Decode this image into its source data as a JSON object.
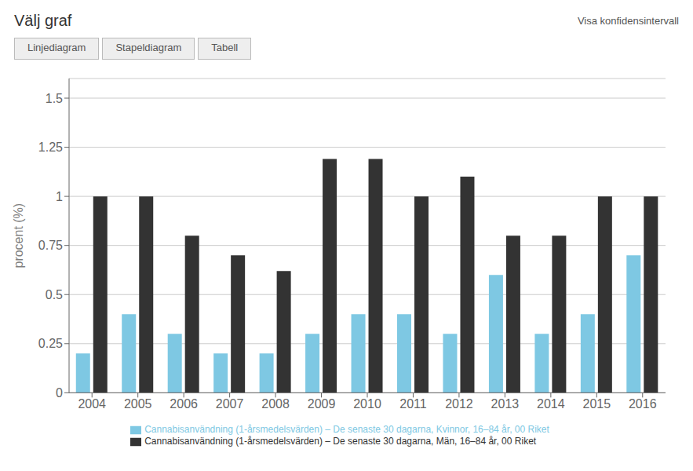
{
  "chart_data": {
    "type": "bar",
    "title": "Välj graf",
    "annotations": [
      "Visa konfidensintervall",
      "Linjediagram",
      "Stapeldiagram",
      "Tabell"
    ],
    "categories": [
      "2004",
      "2005",
      "2006",
      "2007",
      "2008",
      "2009",
      "2010",
      "2011",
      "2012",
      "2013",
      "2014",
      "2015",
      "2016"
    ],
    "series": [
      {
        "name": "Cannabisanvändning (1-årsmedelsvärden) – De senaste 30 dagarna, Kvinnor, 16–84 år, 00 Riket",
        "color": "#7EC8E3",
        "values": [
          0.2,
          0.4,
          0.3,
          0.2,
          0.2,
          0.3,
          0.4,
          0.4,
          0.3,
          0.6,
          0.3,
          0.4,
          0.7
        ]
      },
      {
        "name": "Cannabisanvändning (1-årsmedelsvärden) – De senaste 30 dagarna, Män, 16–84 år, 00 Riket",
        "color": "#333333",
        "values": [
          1.0,
          1.0,
          0.8,
          0.7,
          0.62,
          1.19,
          1.19,
          1.0,
          1.1,
          0.8,
          0.8,
          1.0,
          1.0
        ]
      }
    ],
    "ylabel": "procent (%)",
    "ylim": [
      0,
      1.6
    ],
    "yticks": [
      0,
      0.25,
      0.5,
      0.75,
      1.0,
      1.25,
      1.5
    ],
    "grid": true,
    "legend": "bottom"
  }
}
